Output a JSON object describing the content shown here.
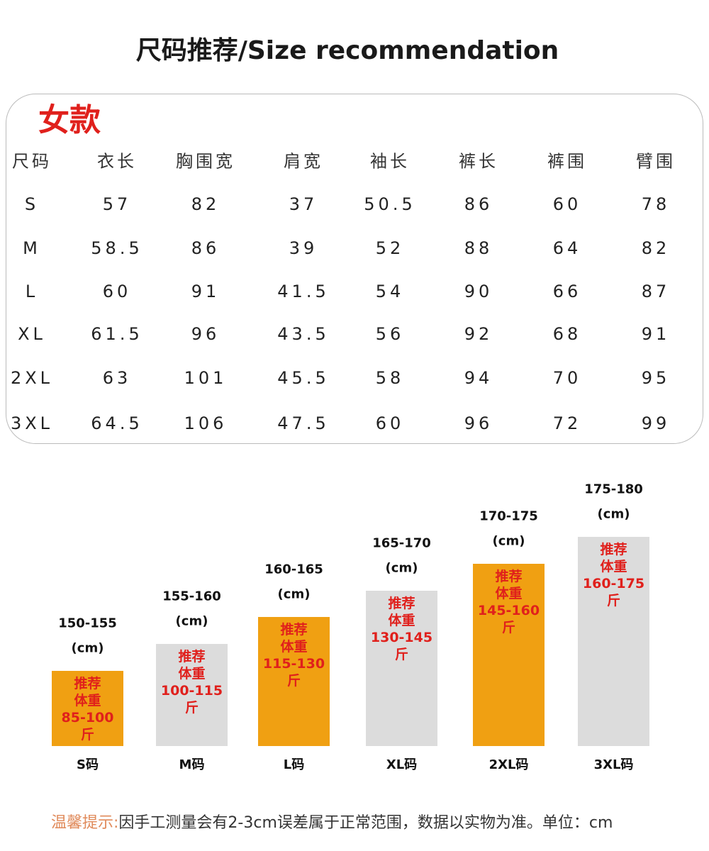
{
  "title": "尺码推荐/Size recommendation",
  "section": "女款",
  "table": {
    "header": [
      "尺码",
      "衣长",
      "胸围宽",
      "肩宽",
      "袖长",
      "裤长",
      "裤围",
      "臂围"
    ],
    "rows": [
      [
        "S",
        "57",
        "82",
        "37",
        "50.5",
        "86",
        "60",
        "78"
      ],
      [
        "M",
        "58.5",
        "86",
        "39",
        "52",
        "88",
        "64",
        "82"
      ],
      [
        "L",
        "60",
        "91",
        "41.5",
        "54",
        "90",
        "66",
        "87"
      ],
      [
        "XL",
        "61.5",
        "96",
        "43.5",
        "56",
        "92",
        "68",
        "91"
      ],
      [
        "2XL",
        "63",
        "101",
        "45.5",
        "58",
        "94",
        "70",
        "95"
      ],
      [
        "3XL",
        "64.5",
        "106",
        "47.5",
        "60",
        "96",
        "72",
        "99"
      ]
    ]
  },
  "recommendations": [
    {
      "height": "150-155",
      "height_unit": "(cm)",
      "weight_label": [
        "推荐",
        "体重"
      ],
      "weight": "85-100",
      "weight_unit": "斤",
      "size": "S码",
      "color": "#f0a012"
    },
    {
      "height": "155-160",
      "height_unit": "(cm)",
      "weight_label": [
        "推荐",
        "体重"
      ],
      "weight": "100-115",
      "weight_unit": "斤",
      "size": "M码",
      "color": "#dcdcdc"
    },
    {
      "height": "160-165",
      "height_unit": "(cm)",
      "weight_label": [
        "推荐",
        "体重"
      ],
      "weight": "115-130",
      "weight_unit": "斤",
      "size": "L码",
      "color": "#f0a012"
    },
    {
      "height": "165-170",
      "height_unit": "(cm)",
      "weight_label": [
        "推荐",
        "体重"
      ],
      "weight": "130-145",
      "weight_unit": "斤",
      "size": "XL码",
      "color": "#dcdcdc"
    },
    {
      "height": "170-175",
      "height_unit": "(cm)",
      "weight_label": [
        "推荐",
        "体重"
      ],
      "weight": "145-160",
      "weight_unit": "斤",
      "size": "2XL码",
      "color": "#f0a012"
    },
    {
      "height": "175-180",
      "height_unit": "(cm)",
      "weight_label": [
        "推荐",
        "体重"
      ],
      "weight": "160-175",
      "weight_unit": "斤",
      "size": "3XL码",
      "color": "#dcdcdc"
    }
  ],
  "tip": {
    "label": "温馨提示:",
    "text": "因手工测量会有2-3cm误差属于正常范围，数据以实物为准。单位：cm"
  }
}
